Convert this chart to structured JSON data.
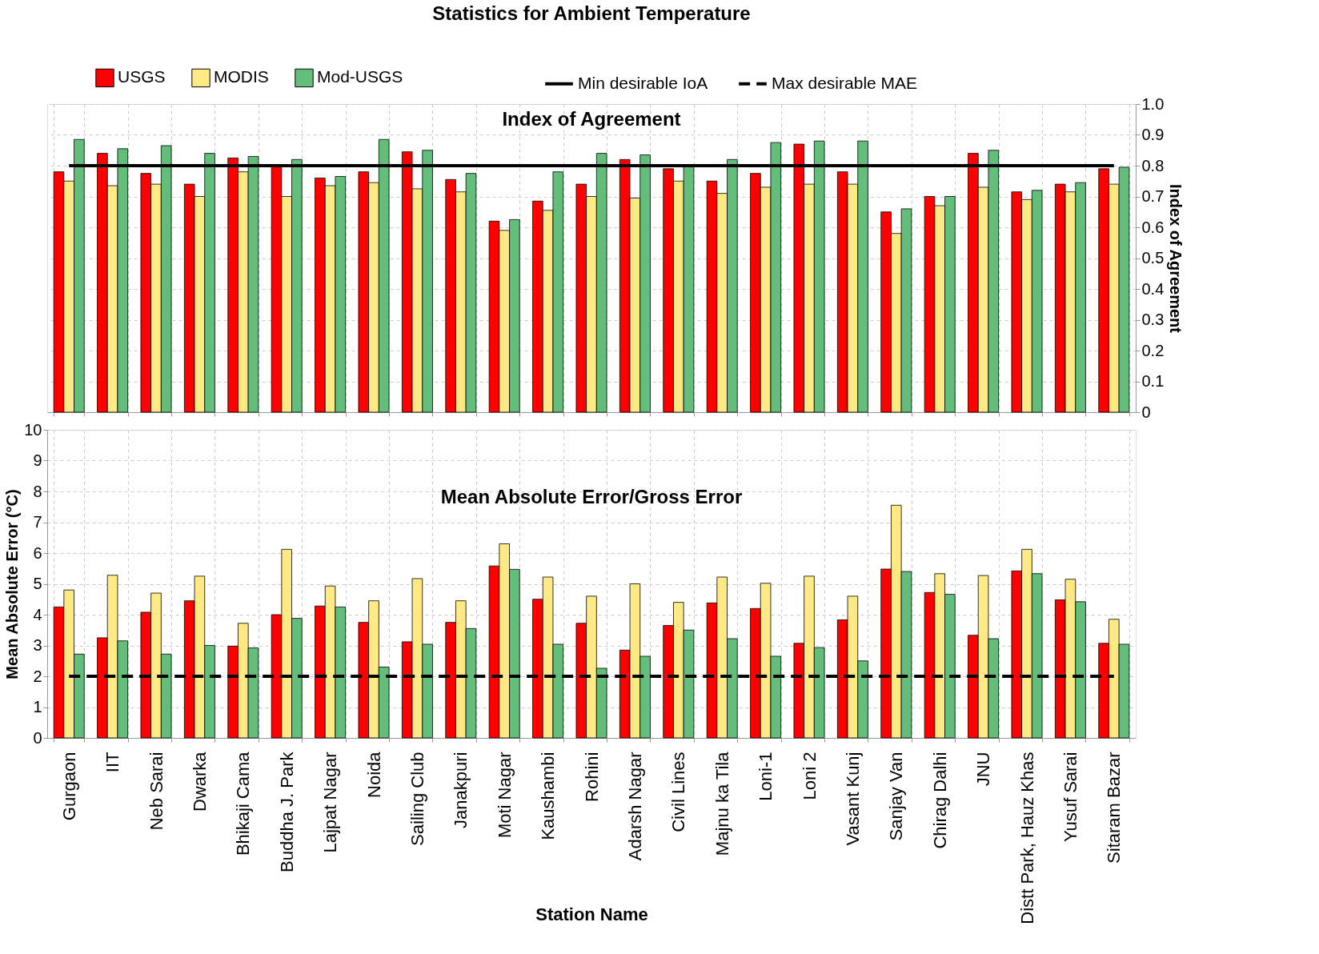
{
  "chart_data": [
    {
      "type": "bar",
      "title": "Statistics for Ambient Temperature",
      "annotations": [
        "Index of Agreement"
      ],
      "ylabel": "Index of Agreement",
      "categories": [
        null,
        null,
        null,
        null,
        null,
        null,
        null,
        null,
        null,
        null,
        null,
        null,
        null,
        null,
        null,
        null,
        null,
        null,
        null,
        null,
        null,
        null,
        null,
        null,
        null
      ],
      "series": [
        {
          "name": "USGS",
          "color": "#ff0000",
          "values": [
            0.78,
            0.84,
            0.775,
            0.74,
            0.825,
            0.8,
            0.76,
            0.78,
            0.845,
            0.755,
            0.62,
            0.685,
            0.74,
            0.82,
            0.79,
            0.75,
            0.775,
            0.87,
            0.78,
            0.65,
            0.7,
            0.84,
            0.715,
            0.74,
            0.79
          ]
        },
        {
          "name": "MODIS",
          "color": "#ffe984",
          "values": [
            0.75,
            0.735,
            0.74,
            0.7,
            0.78,
            0.7,
            0.735,
            0.745,
            0.725,
            0.715,
            0.59,
            0.655,
            0.7,
            0.695,
            0.75,
            0.71,
            0.73,
            0.74,
            0.74,
            0.58,
            0.67,
            0.73,
            0.69,
            0.715,
            0.74
          ]
        },
        {
          "name": "Mod-USGS",
          "color": "#63be7b",
          "values": [
            0.885,
            0.855,
            0.865,
            0.84,
            0.83,
            0.82,
            0.765,
            0.885,
            0.85,
            0.775,
            0.625,
            0.78,
            0.84,
            0.835,
            0.8,
            0.82,
            0.875,
            0.88,
            0.88,
            0.66,
            0.7,
            0.85,
            0.72,
            0.745,
            0.795
          ]
        }
      ],
      "ylim": [
        0,
        1
      ],
      "yticks": [
        0,
        0.1,
        0.2,
        0.3,
        0.4,
        0.5,
        0.6,
        0.7,
        0.8,
        0.9,
        {
          "value": 1,
          "label": "1.0"
        }
      ],
      "ref_lines": [
        {
          "axis": "y",
          "value": 0.8,
          "label": "Min desirable IoA",
          "color": "#000000",
          "line_style": "solid"
        }
      ],
      "grid": true,
      "legend": "top",
      "tick_labels": "y"
    },
    {
      "type": "bar",
      "title": "Mean Absolute Error/Gross Error",
      "xlabel": "Station Name",
      "ylabel": "Mean Absolute Error (°C)",
      "categories": [
        "Gurgaon",
        "IIT",
        "Neb Sarai",
        "Dwarka",
        "Bhikaji Cama",
        "Buddha J. Park",
        "Lajpat Nagar",
        "Noida",
        "Sailing Club",
        "Janakpuri",
        "Moti Nagar",
        "Kaushambi",
        "Rohini",
        "Adarsh Nagar",
        "Civil Lines",
        "Majnu ka Tila",
        "Loni-1",
        "Loni 2",
        "Vasant Kunj",
        "Sanjay Van",
        "Chirag Dalhi",
        "JNU",
        "Distt Park, Hauz Khas",
        "Yusuf Sarai",
        "Sitaram Bazar"
      ],
      "series": [
        {
          "name": "USGS",
          "color": "#ff0000",
          "values": [
            4.25,
            3.25,
            4.08,
            4.45,
            2.98,
            4.0,
            4.28,
            3.75,
            3.12,
            3.75,
            5.58,
            4.5,
            3.72,
            2.85,
            3.65,
            4.38,
            4.2,
            3.07,
            3.83,
            5.48,
            4.72,
            3.33,
            5.42,
            4.48,
            3.07
          ]
        },
        {
          "name": "MODIS",
          "color": "#ffe984",
          "values": [
            4.8,
            5.28,
            4.7,
            5.25,
            3.72,
            6.12,
            4.93,
            4.45,
            5.17,
            4.45,
            6.3,
            5.22,
            4.6,
            5.0,
            4.4,
            5.22,
            5.02,
            5.25,
            4.6,
            7.55,
            5.33,
            5.27,
            6.12,
            5.15,
            3.85
          ]
        },
        {
          "name": "Mod-USGS",
          "color": "#63be7b",
          "values": [
            2.72,
            3.15,
            2.72,
            3.0,
            2.92,
            3.88,
            4.25,
            2.3,
            3.04,
            3.55,
            5.47,
            3.04,
            2.26,
            2.65,
            3.5,
            3.22,
            2.65,
            2.93,
            2.5,
            5.4,
            4.66,
            3.22,
            5.33,
            4.42,
            3.04
          ]
        }
      ],
      "ylim": [
        0,
        10
      ],
      "yticks": [
        0,
        1,
        2,
        3,
        4,
        5,
        6,
        7,
        8,
        9,
        10
      ],
      "ref_lines": [
        {
          "axis": "y",
          "value": 2,
          "label": "Max desirable MAE",
          "color": "#000000",
          "line_style": "dashed"
        }
      ],
      "grid": true
    }
  ]
}
